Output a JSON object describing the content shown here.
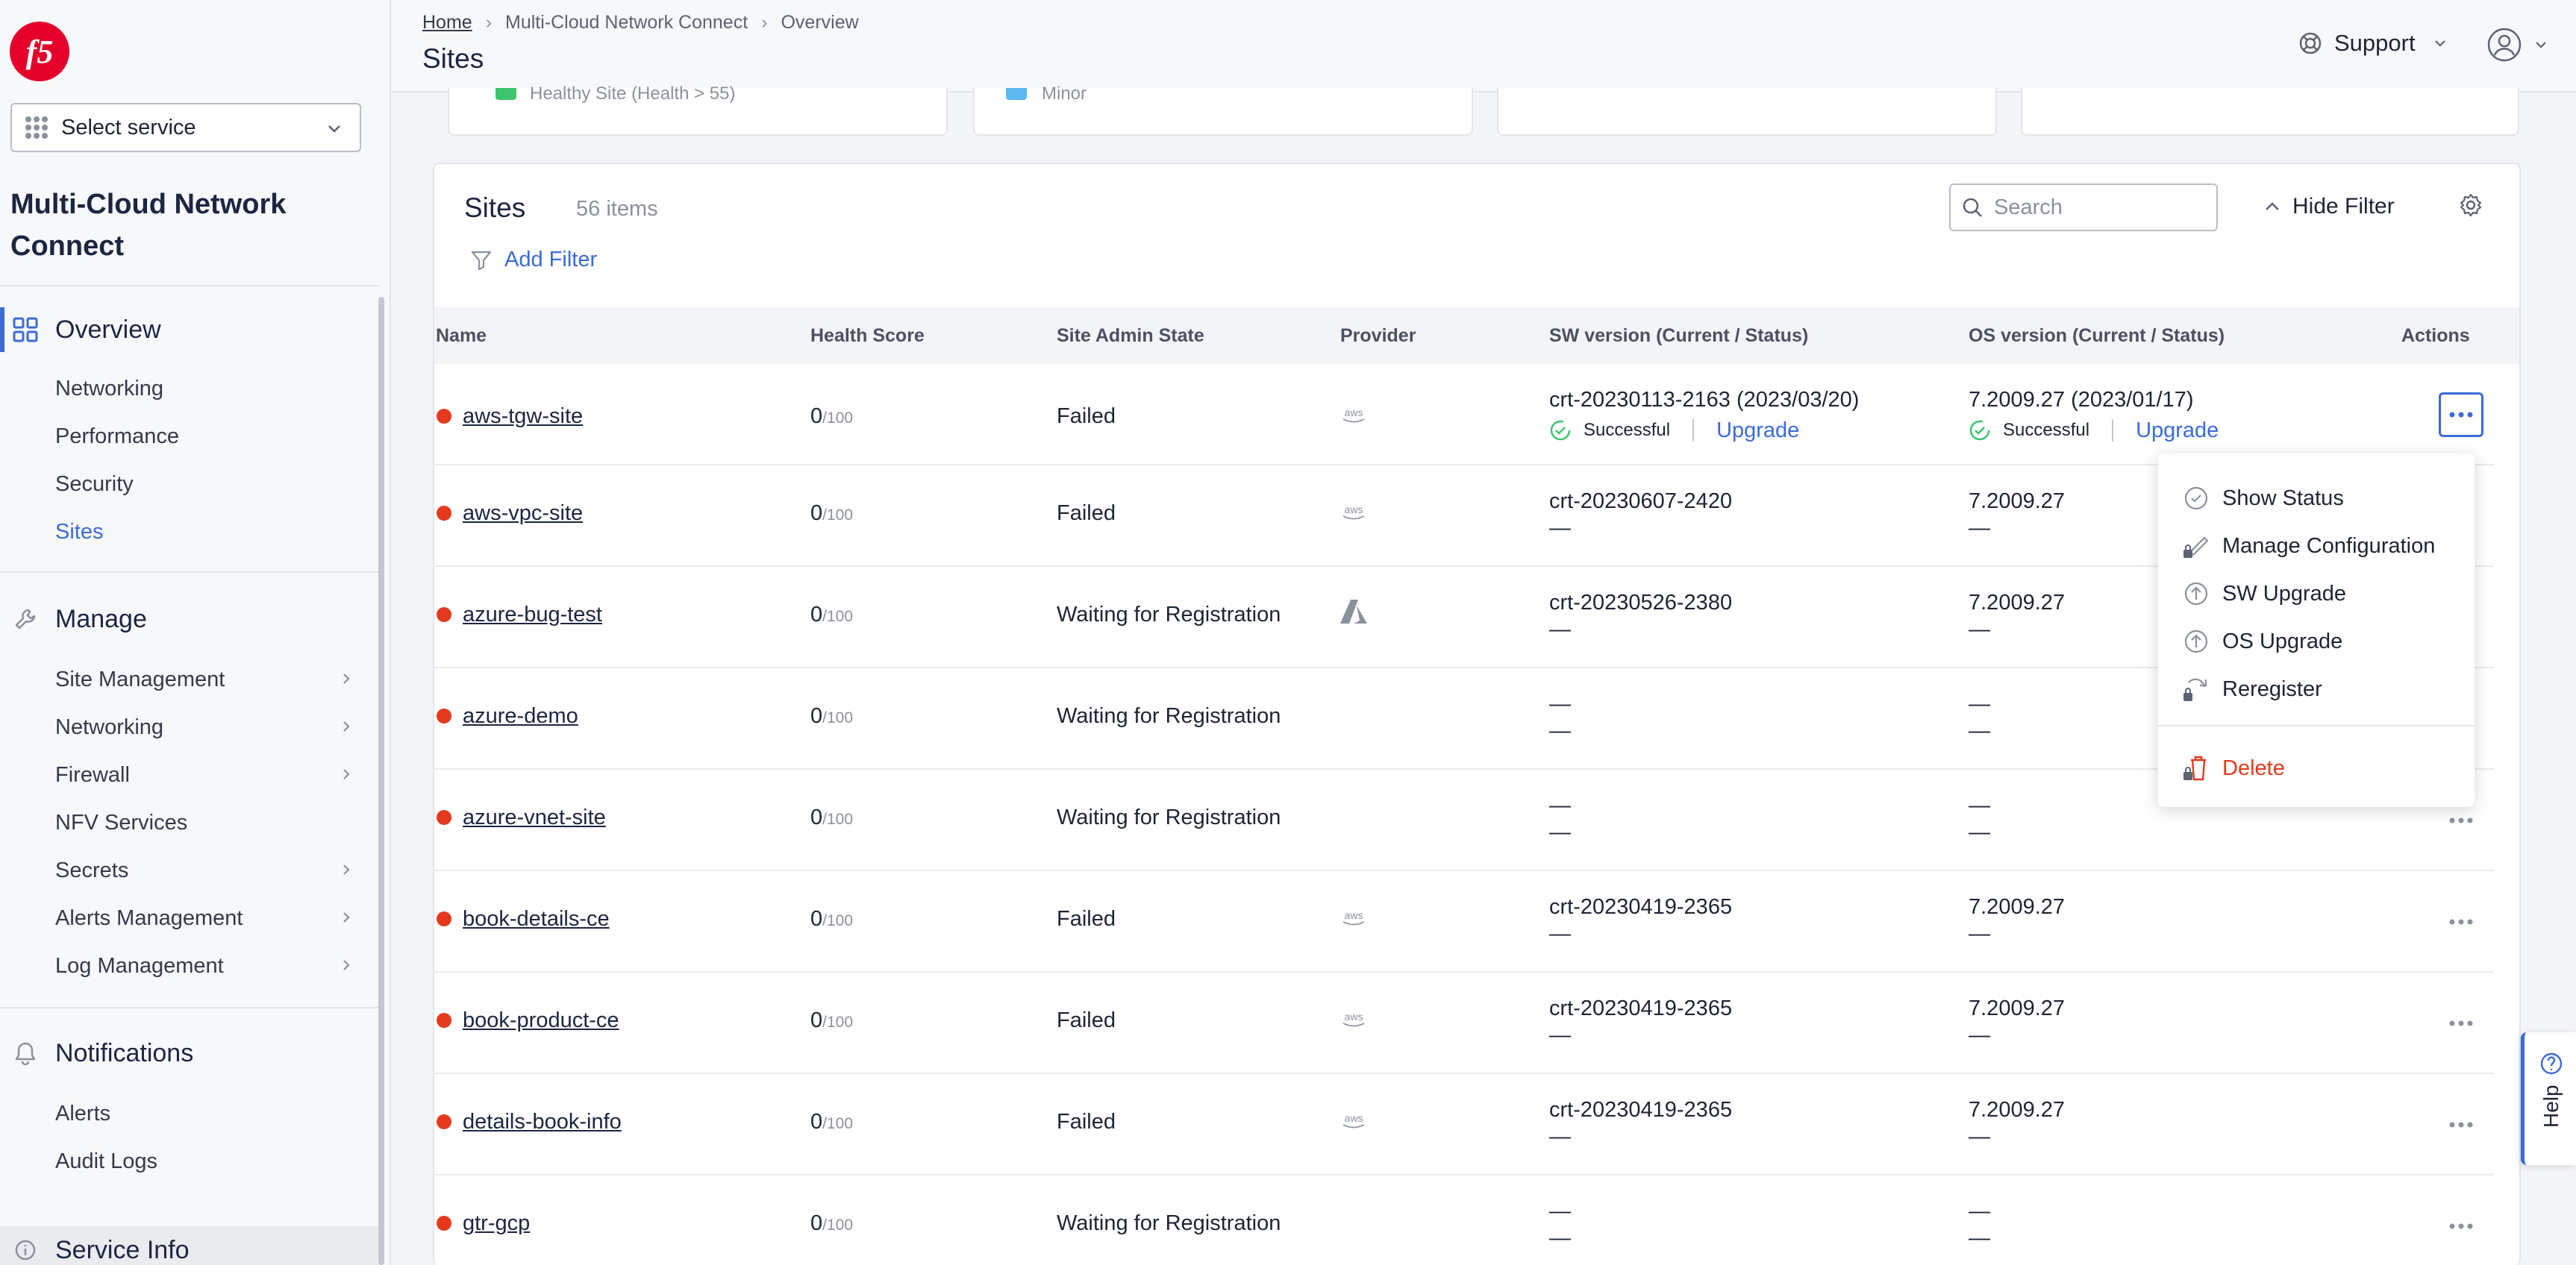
{
  "brand": {
    "logo_text": "f5",
    "accent": "#3b6bd6",
    "logo_color": "#e4002b"
  },
  "sidebar": {
    "service_select": "Select service",
    "app_title": "Multi-Cloud Network Connect",
    "sections": [
      {
        "label": "Overview",
        "icon": "grid-icon",
        "items": [
          {
            "label": "Networking"
          },
          {
            "label": "Performance"
          },
          {
            "label": "Security"
          },
          {
            "label": "Sites",
            "current": true
          }
        ]
      },
      {
        "label": "Manage",
        "icon": "wrench-icon",
        "items": [
          {
            "label": "Site Management",
            "expandable": true
          },
          {
            "label": "Networking",
            "expandable": true
          },
          {
            "label": "Firewall",
            "expandable": true
          },
          {
            "label": "NFV Services",
            "expandable": false
          },
          {
            "label": "Secrets",
            "expandable": true
          },
          {
            "label": "Alerts Management",
            "expandable": true
          },
          {
            "label": "Log Management",
            "expandable": true
          }
        ]
      },
      {
        "label": "Notifications",
        "icon": "bell-icon",
        "items": [
          {
            "label": "Alerts"
          },
          {
            "label": "Audit Logs"
          }
        ]
      },
      {
        "label": "Service Info",
        "icon": "info-icon"
      }
    ]
  },
  "header": {
    "breadcrumb": [
      "Home",
      "Multi-Cloud Network Connect",
      "Overview"
    ],
    "title": "Sites",
    "support": "Support"
  },
  "top_cards": [
    {
      "label": "Healthy Site (Health > 55)",
      "check_color": "#3ec46d"
    },
    {
      "label": "Minor",
      "check_color": "#5cb8f0"
    },
    {},
    {}
  ],
  "sites": {
    "title": "Sites",
    "count": "56 items",
    "add_filter": "Add Filter",
    "search_placeholder": "Search",
    "hide_filter": "Hide Filter",
    "columns": [
      "Name",
      "Health Score",
      "Site Admin State",
      "Provider",
      "SW version (Current / Status)",
      "OS version (Current / Status)",
      "Actions"
    ],
    "rows": [
      {
        "name": "aws-tgw-site",
        "score": "0",
        "max": "/100",
        "state": "Failed",
        "provider": "aws",
        "sw": "crt-20230113-2163 (2023/03/20)",
        "sw_status": "Successful",
        "sw_upgrade": "Upgrade",
        "os": "7.2009.27 (2023/01/17)",
        "os_status": "Successful",
        "os_upgrade": "Upgrade"
      },
      {
        "name": "aws-vpc-site",
        "score": "0",
        "max": "/100",
        "state": "Failed",
        "provider": "aws",
        "sw": "crt-20230607-2420",
        "sw_status": "—",
        "os": "7.2009.27",
        "os_status": "—"
      },
      {
        "name": "azure-bug-test",
        "score": "0",
        "max": "/100",
        "state": "Waiting for Registration",
        "provider": "azure",
        "sw": "crt-20230526-2380",
        "sw_status": "—",
        "os": "7.2009.27",
        "os_status": "—"
      },
      {
        "name": "azure-demo",
        "score": "0",
        "max": "/100",
        "state": "Waiting for Registration",
        "provider": "",
        "sw": "—",
        "sw_status": "—",
        "os": "—",
        "os_status": "—"
      },
      {
        "name": "azure-vnet-site",
        "score": "0",
        "max": "/100",
        "state": "Waiting for Registration",
        "provider": "",
        "sw": "—",
        "sw_status": "—",
        "os": "—",
        "os_status": "—"
      },
      {
        "name": "book-details-ce",
        "score": "0",
        "max": "/100",
        "state": "Failed",
        "provider": "aws",
        "sw": "crt-20230419-2365",
        "sw_status": "—",
        "os": "7.2009.27",
        "os_status": "—"
      },
      {
        "name": "book-product-ce",
        "score": "0",
        "max": "/100",
        "state": "Failed",
        "provider": "aws",
        "sw": "crt-20230419-2365",
        "sw_status": "—",
        "os": "7.2009.27",
        "os_status": "—"
      },
      {
        "name": "details-book-info",
        "score": "0",
        "max": "/100",
        "state": "Failed",
        "provider": "aws",
        "sw": "crt-20230419-2365",
        "sw_status": "—",
        "os": "7.2009.27",
        "os_status": "—"
      },
      {
        "name": "gtr-gcp",
        "score": "0",
        "max": "/100",
        "state": "Waiting for Registration",
        "provider": "",
        "sw": "—",
        "sw_status": "—",
        "os": "—",
        "os_status": "—"
      }
    ]
  },
  "actions_menu": [
    {
      "label": "Show Status",
      "icon": "check-circle-icon",
      "locked": false
    },
    {
      "label": "Manage Configuration",
      "icon": "pencil-icon",
      "locked": true
    },
    {
      "label": "SW Upgrade",
      "icon": "upgrade-arrow-icon",
      "locked": false
    },
    {
      "label": "OS Upgrade",
      "icon": "upgrade-arrow-icon",
      "locked": false
    },
    {
      "label": "Reregister",
      "icon": "refresh-icon",
      "locked": true
    },
    {
      "label": "Delete",
      "icon": "trash-icon",
      "locked": true,
      "danger": true
    }
  ],
  "help": {
    "label": "Help"
  },
  "status_colors": {
    "failed_dot": "#e5391e",
    "success": "#3ec46d",
    "link": "#3b6bd6"
  }
}
